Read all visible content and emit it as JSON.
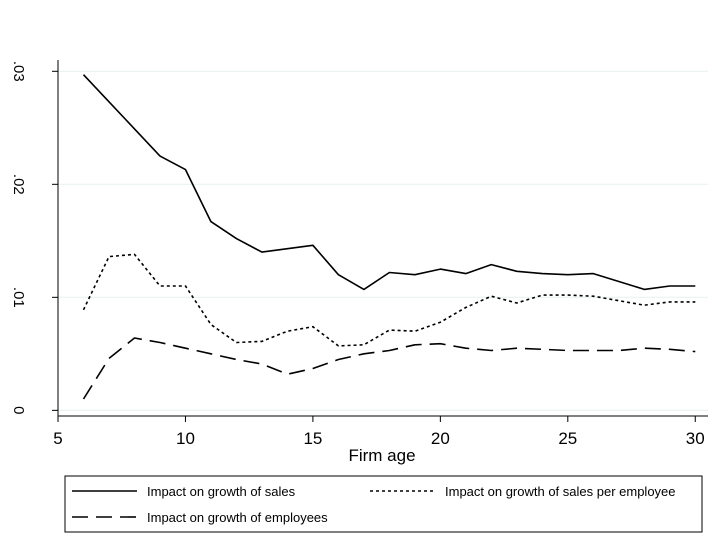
{
  "chart_data": {
    "type": "line",
    "title": "",
    "xlabel": "Firm age",
    "ylabel": "",
    "xlim": [
      5,
      30.5
    ],
    "ylim": [
      -0.0005,
      0.031
    ],
    "xticks": [
      5,
      10,
      15,
      20,
      25,
      30
    ],
    "xtick_labels": [
      "5",
      "10",
      "15",
      "20",
      "25",
      "30"
    ],
    "yticks": [
      0,
      0.01,
      0.02,
      0.03
    ],
    "ytick_labels": [
      "0",
      ".01",
      ".02",
      ".03"
    ],
    "grid": "horizontal",
    "legend_position": "bottom",
    "x": [
      6,
      7,
      8,
      9,
      10,
      11,
      12,
      13,
      14,
      15,
      16,
      17,
      18,
      19,
      20,
      21,
      22,
      23,
      24,
      25,
      26,
      27,
      28,
      29,
      30
    ],
    "series": [
      {
        "name": "Impact on growth of sales",
        "dash": "solid",
        "color": "#000000",
        "values": [
          0.0297,
          0.0273,
          0.0249,
          0.0225,
          0.0213,
          0.0167,
          0.0152,
          0.014,
          0.0143,
          0.0146,
          0.012,
          0.0107,
          0.0122,
          0.012,
          0.0125,
          0.0121,
          0.0129,
          0.0123,
          0.0121,
          0.012,
          0.0121,
          0.0114,
          0.0107,
          0.011,
          0.011
        ]
      },
      {
        "name": "Impact on growth of sales per employee",
        "dash": "dotted",
        "color": "#000000",
        "values": [
          0.0089,
          0.0136,
          0.0138,
          0.011,
          0.011,
          0.0076,
          0.006,
          0.0061,
          0.007,
          0.0074,
          0.0057,
          0.0058,
          0.0071,
          0.007,
          0.0078,
          0.0091,
          0.0101,
          0.0095,
          0.0102,
          0.0102,
          0.0101,
          0.0097,
          0.0093,
          0.0096,
          0.0096
        ]
      },
      {
        "name": "Impact on growth of employees",
        "dash": "dashed",
        "color": "#000000",
        "values": [
          0.001,
          0.0046,
          0.0064,
          0.006,
          0.0055,
          0.005,
          0.0045,
          0.0041,
          0.0032,
          0.0037,
          0.0045,
          0.005,
          0.0053,
          0.0058,
          0.0059,
          0.0055,
          0.0053,
          0.0055,
          0.0054,
          0.0053,
          0.0053,
          0.0053,
          0.0055,
          0.0054,
          0.0052
        ]
      }
    ]
  }
}
